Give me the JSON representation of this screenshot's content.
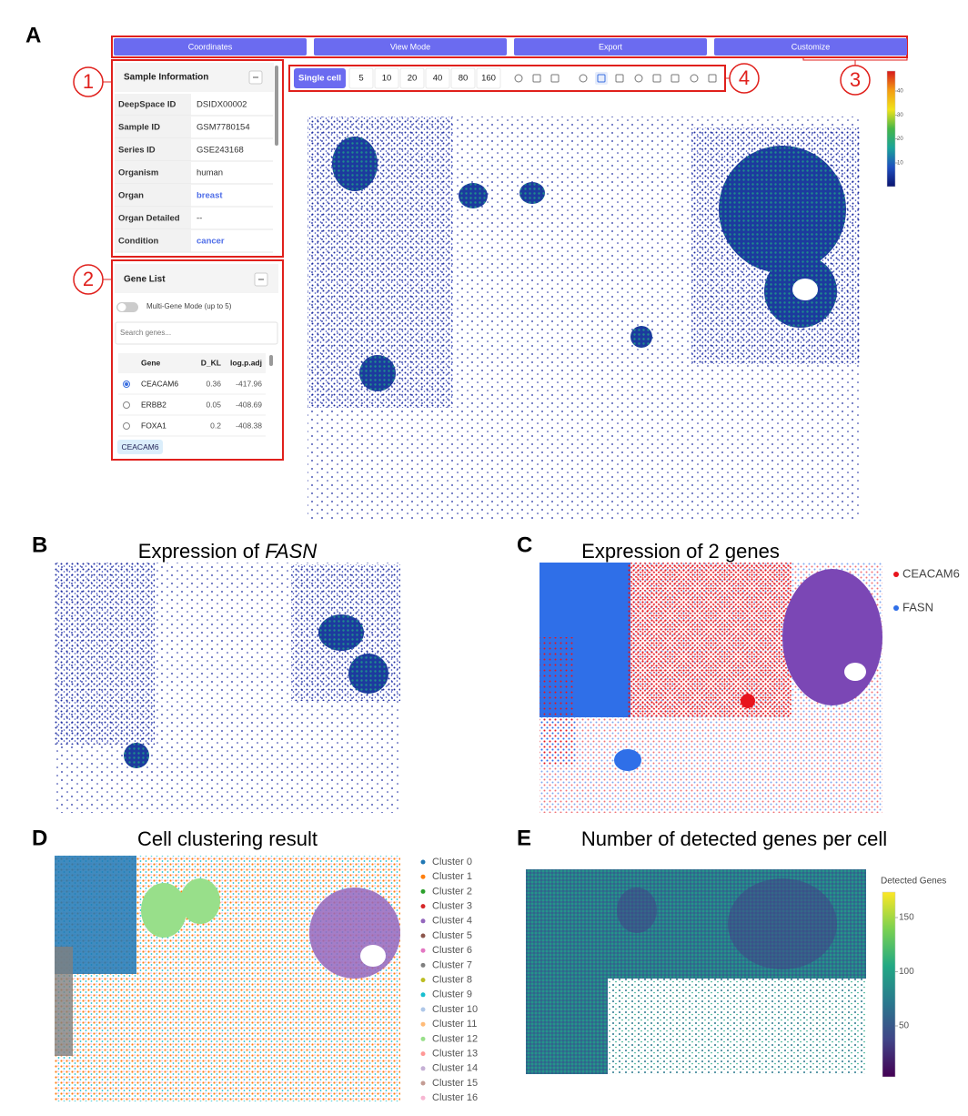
{
  "figure": {
    "panel_labels": [
      "A",
      "B",
      "C",
      "D",
      "E"
    ],
    "A": {
      "menu": [
        "Coordinates",
        "View Mode",
        "Export",
        "Customize"
      ],
      "callouts": [
        1,
        2,
        3,
        4
      ],
      "sample_info": {
        "title": "Sample Information",
        "rows": [
          {
            "label": "DeepSpace ID",
            "value": "DSIDX00002",
            "link": false
          },
          {
            "label": "Sample ID",
            "value": "GSM7780154",
            "link": false
          },
          {
            "label": "Series ID",
            "value": "GSE243168",
            "link": false
          },
          {
            "label": "Organism",
            "value": "human",
            "link": false
          },
          {
            "label": "Organ",
            "value": "breast",
            "link": true
          },
          {
            "label": "Organ Detailed",
            "value": "--",
            "link": false
          },
          {
            "label": "Condition",
            "value": "cancer",
            "link": true
          }
        ]
      },
      "gene_list": {
        "title": "Gene List",
        "toggle": "Multi-Gene Mode (up to 5)",
        "search_placeholder": "Search genes...",
        "columns": [
          "Gene",
          "D_KL",
          "log.p.adj"
        ],
        "rows": [
          [
            "CEACAM6",
            0.36,
            -417.96
          ],
          [
            "ERBB2",
            0.05,
            -408.69
          ],
          [
            "FOXA1",
            0.2,
            -408.38
          ]
        ],
        "selected_chip": "CEACAM6"
      },
      "toolbar": {
        "mode": "Single cell",
        "sizes": [
          5,
          10,
          20,
          40,
          80,
          160
        ]
      },
      "colorbar": {
        "ticks": [
          40,
          30,
          20,
          10
        ],
        "colors": [
          "#d7191c",
          "#f39c12",
          "#f1e31a",
          "#45b649",
          "#1aa39a",
          "#1f4fbf",
          "#0b1470"
        ]
      }
    },
    "B": {
      "title_prefix": "Expression of",
      "title_gene": "FASN"
    },
    "C": {
      "title": "Expression of 2 genes",
      "legend": [
        {
          "name": "CEACAM6",
          "color": "#e8141c"
        },
        {
          "name": "FASN",
          "color": "#2f6fe8"
        }
      ]
    },
    "D": {
      "title": "Cell clustering result",
      "legend": [
        {
          "name": "Cluster 0",
          "color": "#1f77b4"
        },
        {
          "name": "Cluster 1",
          "color": "#ff7f0e"
        },
        {
          "name": "Cluster 2",
          "color": "#2ca02c"
        },
        {
          "name": "Cluster 3",
          "color": "#d62728"
        },
        {
          "name": "Cluster 4",
          "color": "#9467bd"
        },
        {
          "name": "Cluster 5",
          "color": "#8c564b"
        },
        {
          "name": "Cluster 6",
          "color": "#e377c2"
        },
        {
          "name": "Cluster 7",
          "color": "#7f7f7f"
        },
        {
          "name": "Cluster 8",
          "color": "#bcbd22"
        },
        {
          "name": "Cluster 9",
          "color": "#17becf"
        },
        {
          "name": "Cluster 10",
          "color": "#aec7e8"
        },
        {
          "name": "Cluster 11",
          "color": "#ffbb78"
        },
        {
          "name": "Cluster 12",
          "color": "#98df8a"
        },
        {
          "name": "Cluster 13",
          "color": "#ff9896"
        },
        {
          "name": "Cluster 14",
          "color": "#c5b0d5"
        },
        {
          "name": "Cluster 15",
          "color": "#c49c94"
        },
        {
          "name": "Cluster 16",
          "color": "#f7b6d2"
        }
      ]
    },
    "E": {
      "title": "Number of detected genes per cell",
      "colorbar_title": "Detected Genes",
      "colorbar": {
        "ticks": [
          150,
          100,
          50
        ],
        "colors": [
          "#fde725",
          "#7ad151",
          "#22a884",
          "#2a788e",
          "#414487",
          "#440154"
        ]
      }
    }
  }
}
